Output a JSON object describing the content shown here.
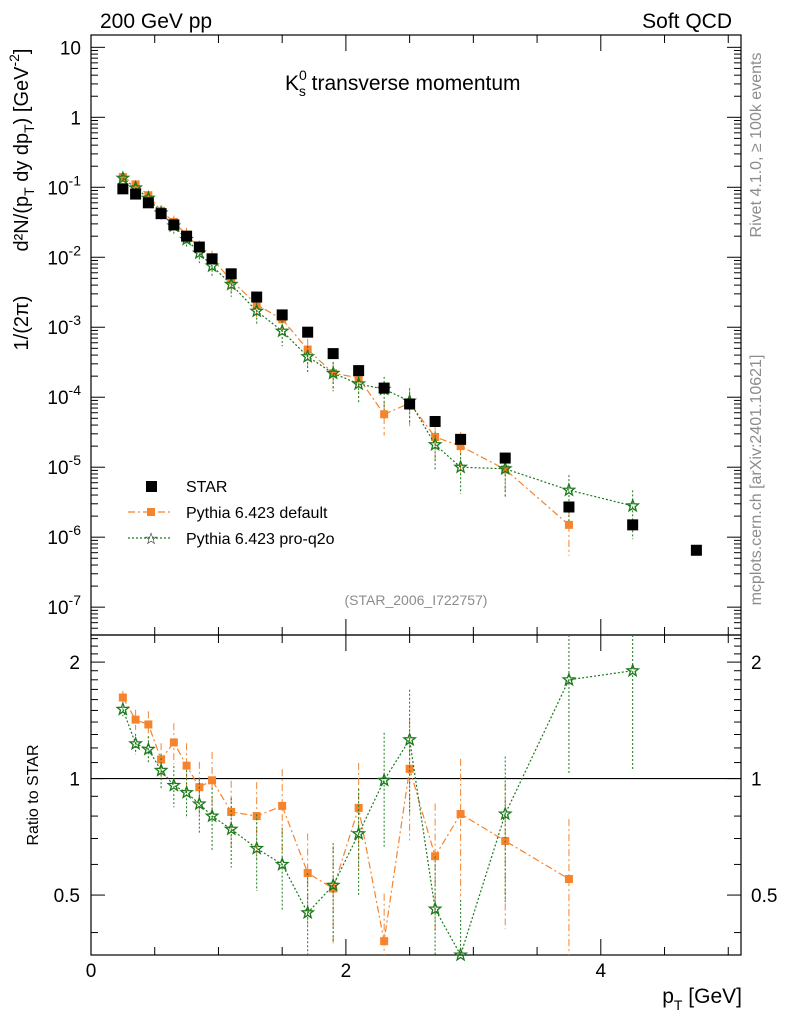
{
  "header": {
    "left": "200 GeV pp",
    "right": "Soft QCD"
  },
  "side": {
    "rivet": "Rivet 4.1.0, ≥ 100k events",
    "mcplots": "mcplots.cern.ch [arXiv:2401.10621]"
  },
  "chart_data": {
    "type": "scatter",
    "title_main": "K",
    "title_sup": "0",
    "title_sub": "s",
    "title_rest": " transverse momentum",
    "watermark": "(STAR_2006_I722757)",
    "xlabel_main": "p",
    "xlabel_sub": "T",
    "xlabel_unit": " [GeV]",
    "ylabel_prefix": "1/(2π)",
    "ylabel_main": "d²N/(p",
    "ylabel_sub": "T",
    "ylabel_mid": " dy dp",
    "ylabel_sub2": "T",
    "ylabel_unit": ") [GeV",
    "ylabel_unit_sup": "-2",
    "ylabel_end": "]",
    "ratio_ylabel": "Ratio to STAR",
    "xlim": [
      0,
      5.1
    ],
    "ylim_log": [
      4e-08,
      15
    ],
    "ratio_ylim": [
      0.35,
      2.35
    ],
    "x_ticks": [
      "0",
      "2",
      "4"
    ],
    "y_ticks": [
      {
        "b": "10",
        "e": "-7"
      },
      {
        "b": "10",
        "e": "-6"
      },
      {
        "b": "10",
        "e": "-5"
      },
      {
        "b": "10",
        "e": "-4"
      },
      {
        "b": "10",
        "e": "-3"
      },
      {
        "b": "10",
        "e": "-2"
      },
      {
        "b": "10",
        "e": "-1"
      },
      {
        "b": "1",
        "e": ""
      },
      {
        "b": "10",
        "e": ""
      }
    ],
    "ratio_ticks": [
      "0.5",
      "1",
      "2"
    ],
    "legend": [
      "STAR",
      "Pythia 6.423 default",
      "Pythia 6.423 pro-q2o"
    ],
    "colors": {
      "data": "#000000",
      "default": "#f5842d",
      "proq2o": "#1a7a1a"
    },
    "x": [
      0.25,
      0.35,
      0.45,
      0.55,
      0.65,
      0.75,
      0.85,
      0.95,
      1.1,
      1.3,
      1.5,
      1.7,
      1.9,
      2.1,
      2.3,
      2.5,
      2.7,
      2.9,
      3.25,
      3.75,
      4.25,
      4.75
    ],
    "star": [
      0.095,
      0.08,
      0.06,
      0.042,
      0.029,
      0.02,
      0.014,
      0.0095,
      0.0058,
      0.0027,
      0.0015,
      0.00085,
      0.00042,
      0.00024,
      0.000135,
      8e-05,
      4.5e-05,
      2.5e-05,
      1.35e-05,
      2.7e-06,
      1.5e-06,
      6.5e-07
    ],
    "series": [
      {
        "name": "Pythia 6.423 default",
        "values": [
          0.14,
          0.11,
          0.077,
          0.046,
          0.032,
          0.021,
          0.0135,
          0.0095,
          0.0047,
          0.0021,
          0.0013,
          0.00048,
          0.00022,
          0.00019,
          5.7e-05,
          8.2e-05,
          2.7e-05,
          2e-05,
          9.3e-06,
          1.5e-06,
          null,
          null
        ],
        "ratio": [
          1.62,
          1.42,
          1.38,
          1.12,
          1.24,
          1.08,
          0.95,
          0.99,
          0.82,
          0.8,
          0.85,
          0.57,
          0.52,
          0.84,
          0.38,
          1.06,
          0.63,
          0.81,
          0.69,
          0.55,
          null,
          null
        ]
      },
      {
        "name": "Pythia 6.423 pro-q2o",
        "values": [
          0.135,
          0.098,
          0.07,
          0.043,
          0.028,
          0.018,
          0.0115,
          0.0075,
          0.0041,
          0.0017,
          0.00088,
          0.00038,
          0.00022,
          0.000155,
          0.00013,
          8.8e-05,
          2.1e-05,
          1e-05,
          9.5e-06,
          4.7e-06,
          2.8e-06,
          null
        ],
        "ratio": [
          1.51,
          1.23,
          1.19,
          1.05,
          0.96,
          0.92,
          0.86,
          0.8,
          0.74,
          0.66,
          0.6,
          0.45,
          0.53,
          0.72,
          0.99,
          1.26,
          0.46,
          0.35,
          0.81,
          1.8,
          1.9,
          null
        ]
      }
    ]
  }
}
